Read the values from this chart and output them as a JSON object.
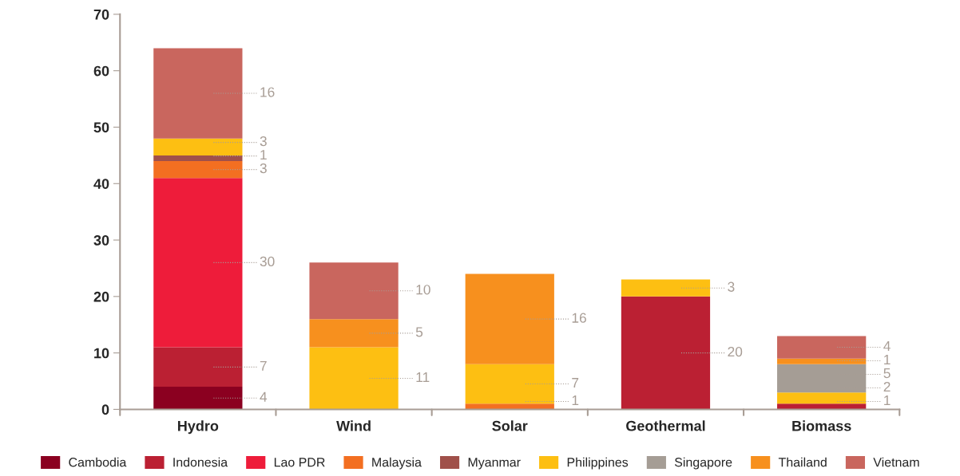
{
  "chart_data": {
    "type": "bar",
    "stacked": true,
    "categories": [
      "Hydro",
      "Wind",
      "Solar",
      "Geothermal",
      "Biomass"
    ],
    "series": [
      {
        "name": "Cambodia",
        "color": "#8b0020",
        "values": [
          4,
          null,
          null,
          null,
          null
        ]
      },
      {
        "name": "Indonesia",
        "color": "#bb2033",
        "values": [
          7,
          null,
          null,
          20,
          1
        ]
      },
      {
        "name": "Lao PDR",
        "color": "#ee1c3a",
        "values": [
          30,
          null,
          null,
          null,
          null
        ]
      },
      {
        "name": "Malaysia",
        "color": "#f36f21",
        "values": [
          3,
          null,
          1,
          null,
          null
        ]
      },
      {
        "name": "Myanmar",
        "color": "#a0504a",
        "values": [
          1,
          null,
          null,
          null,
          null
        ]
      },
      {
        "name": "Philippines",
        "color": "#fdbf12",
        "values": [
          3,
          11,
          7,
          3,
          2
        ]
      },
      {
        "name": "Singapore",
        "color": "#a59d95",
        "values": [
          null,
          null,
          null,
          null,
          5
        ]
      },
      {
        "name": "Thailand",
        "color": "#f7901e",
        "values": [
          null,
          5,
          16,
          null,
          1
        ]
      },
      {
        "name": "Vietnam",
        "color": "#c9665e",
        "values": [
          16,
          10,
          null,
          null,
          4
        ]
      }
    ],
    "ylim": [
      0,
      70
    ],
    "yticks": [
      0,
      10,
      20,
      30,
      40,
      50,
      60,
      70
    ],
    "grid": false,
    "legend": "bottom",
    "data_labels": true
  }
}
